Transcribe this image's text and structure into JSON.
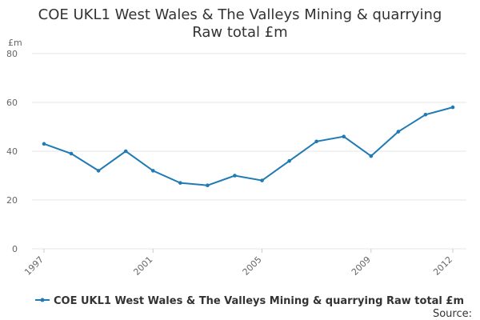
{
  "chart_data": {
    "type": "line",
    "title_lines": [
      "COE UKL1 West Wales & The Valleys Mining & quarrying",
      "Raw total £m"
    ],
    "y_unit": "£m",
    "x": [
      1997,
      1998,
      1999,
      2000,
      2001,
      2002,
      2003,
      2004,
      2005,
      2006,
      2007,
      2008,
      2009,
      2010,
      2011,
      2012
    ],
    "x_tick_labels": [
      "1997",
      "2001",
      "2005",
      "2009",
      "2012"
    ],
    "y_ticks": [
      0,
      20,
      40,
      60,
      80
    ],
    "ylim": [
      0,
      80
    ],
    "series": [
      {
        "name": "COE UKL1 West Wales & The Valleys Mining & quarrying Raw total £m",
        "values": [
          43,
          39,
          32,
          40,
          32,
          27,
          26,
          30,
          28,
          36,
          44,
          46,
          38,
          48,
          55,
          58
        ],
        "color": "#1f7ab5"
      }
    ],
    "grid": true,
    "legend_position": "bottom",
    "source_label": "Source:"
  }
}
